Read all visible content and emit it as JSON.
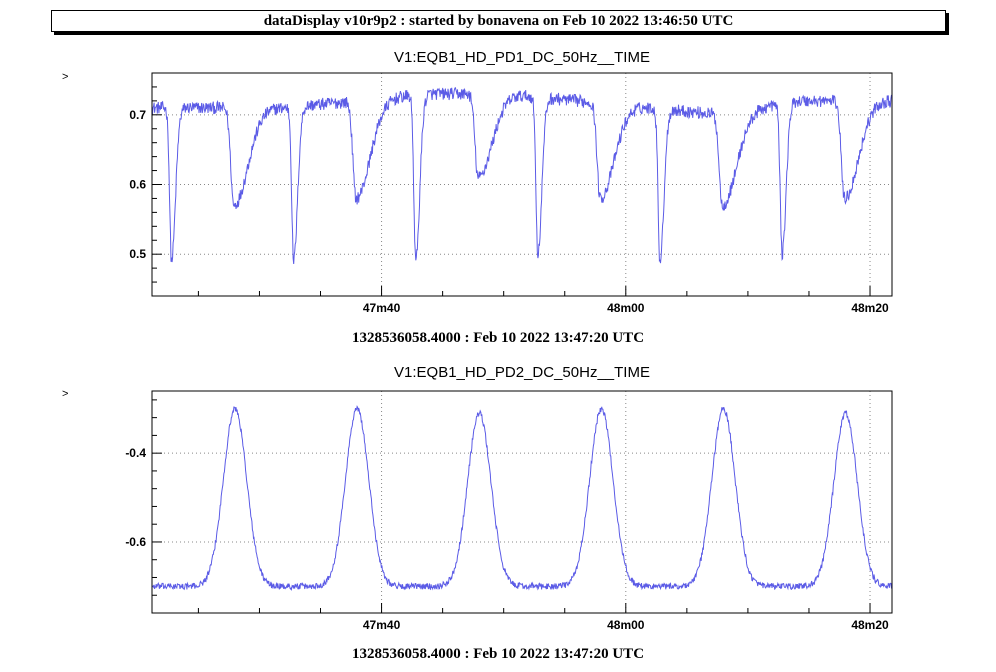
{
  "header": {
    "title": "dataDisplay v10r9p2 : started by bonavena on Feb 10 2022 13:46:50 UTC"
  },
  "colors": {
    "trace": "#5b5be6",
    "axis": "#000000",
    "grid": "#888888"
  },
  "chart_data": [
    {
      "type": "line",
      "title": "V1:EQB1_HD_PD1_DC_50Hz__TIME",
      "ylabel": ">",
      "xlabel": "",
      "caption": "1328536058.4000 : Feb 10 2022 13:47:20 UTC",
      "grid": true,
      "xlim": [
        1.2,
        61.8
      ],
      "ylim": [
        0.44,
        0.76
      ],
      "x_ticks": [
        {
          "value": 20,
          "label": "47m40"
        },
        {
          "value": 40,
          "label": "48m00"
        },
        {
          "value": 60,
          "label": "48m20"
        }
      ],
      "y_ticks": [
        {
          "value": 0.5,
          "label": "0.5"
        },
        {
          "value": 0.6,
          "label": "0.6"
        },
        {
          "value": 0.7,
          "label": "0.7"
        }
      ],
      "baseline_segments": [
        {
          "x": [
            1.2,
            6.0,
            12.0,
            18.0,
            24.0,
            30.0,
            36.0,
            42.0,
            48.0,
            54.0,
            60.0,
            61.8
          ],
          "y": [
            0.71,
            0.71,
            0.71,
            0.72,
            0.73,
            0.73,
            0.72,
            0.71,
            0.7,
            0.72,
            0.72,
            0.72
          ]
        }
      ],
      "series": [
        {
          "dips": [
            {
              "x": 2.8,
              "y": 0.49,
              "kind": "sharp"
            },
            {
              "x": 7.9,
              "y": 0.57,
              "kind": "broad"
            },
            {
              "x": 12.8,
              "y": 0.49,
              "kind": "sharp"
            },
            {
              "x": 17.9,
              "y": 0.58,
              "kind": "broad"
            },
            {
              "x": 22.8,
              "y": 0.49,
              "kind": "sharp"
            },
            {
              "x": 27.9,
              "y": 0.61,
              "kind": "broad"
            },
            {
              "x": 32.8,
              "y": 0.5,
              "kind": "sharp"
            },
            {
              "x": 37.9,
              "y": 0.58,
              "kind": "broad"
            },
            {
              "x": 42.8,
              "y": 0.49,
              "kind": "sharp"
            },
            {
              "x": 47.9,
              "y": 0.57,
              "kind": "broad"
            },
            {
              "x": 52.8,
              "y": 0.5,
              "kind": "sharp"
            },
            {
              "x": 57.9,
              "y": 0.58,
              "kind": "broad"
            }
          ]
        }
      ]
    },
    {
      "type": "line",
      "title": "V1:EQB1_HD_PD2_DC_50Hz__TIME",
      "ylabel": ">",
      "xlabel": "",
      "caption": "1328536058.4000 : Feb 10 2022 13:47:20 UTC",
      "grid": true,
      "xlim": [
        1.2,
        61.8
      ],
      "ylim": [
        -0.76,
        -0.26
      ],
      "x_ticks": [
        {
          "value": 20,
          "label": "47m40"
        },
        {
          "value": 40,
          "label": "48m00"
        },
        {
          "value": 60,
          "label": "48m20"
        }
      ],
      "y_ticks": [
        {
          "value": -0.6,
          "label": "-0.6"
        },
        {
          "value": -0.4,
          "label": "-0.4"
        }
      ],
      "series": [
        {
          "baseline": -0.7,
          "peaks": [
            {
              "x": 8.0,
              "y": -0.3
            },
            {
              "x": 18.0,
              "y": -0.3
            },
            {
              "x": 28.0,
              "y": -0.31
            },
            {
              "x": 38.0,
              "y": -0.3
            },
            {
              "x": 48.0,
              "y": -0.3
            },
            {
              "x": 58.0,
              "y": -0.31
            }
          ]
        }
      ]
    }
  ]
}
